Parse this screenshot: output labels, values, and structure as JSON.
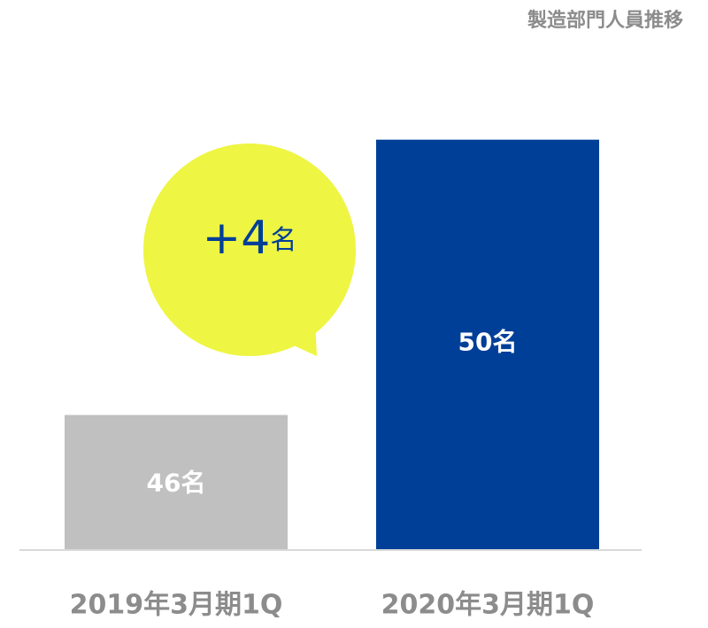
{
  "chart_data": {
    "type": "bar",
    "title": "製造部門人員推移",
    "categories": [
      "2019年3月期1Q",
      "2020年3月期1Q"
    ],
    "values": [
      46,
      50
    ],
    "value_labels": [
      "46名",
      "50名"
    ],
    "colors": [
      "#c0c0c0",
      "#003f98"
    ],
    "annotation": "+4名",
    "ylim": [
      44.05,
      51
    ]
  }
}
